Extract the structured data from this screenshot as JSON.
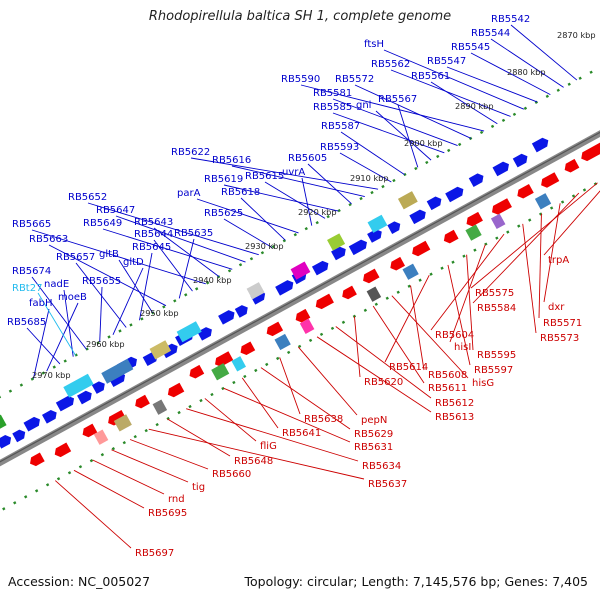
{
  "title": "Rhodopirellula baltica SH 1, complete genome",
  "footer": {
    "accession_label": "Accession:",
    "accession": "NC_005027",
    "topology_label": "Topology:",
    "topology": "circular;",
    "length_label": "Length:",
    "length": "7,145,576 bp;",
    "genes_label": "Genes:",
    "genes": "7,405"
  },
  "colors": {
    "forward_label": "#0000cc",
    "reverse_label": "#cc0000",
    "rna_label": "#22bbee",
    "backbone": "#888888",
    "ticks": "#2a8a2a"
  },
  "scale_labels": [
    "2870 kbp",
    "2880 kbp",
    "2890 kbp",
    "2900 kbp",
    "2910 kbp",
    "2920 kbp",
    "2930 kbp",
    "2940 kbp",
    "2950 kbp",
    "2960 kbp",
    "2970 kbp"
  ],
  "forward_genes": [
    "RB5542",
    "RB5544",
    "RB5545",
    "RB5547",
    "ftsH",
    "RB5562",
    "RB5561",
    "RB5590",
    "RB5572",
    "RB5581",
    "RB5585",
    "gnl",
    "RB5567",
    "RB5587",
    "RB5593",
    "RB5622",
    "RB5616",
    "RB5605",
    "RB5619",
    "RB5615",
    "uvrA",
    "parA",
    "RB5618",
    "RB5625",
    "RB5652",
    "RB5647",
    "RB5649",
    "RB5643",
    "RB5665",
    "RB5644",
    "RB5635",
    "RB5663",
    "gltB",
    "RB5645",
    "RB5657",
    "gltD",
    "RB5655",
    "RB5674",
    "nadE",
    "RB5685",
    "moeB",
    "fabH"
  ],
  "rna_genes": [
    "RBt27"
  ],
  "reverse_genes": [
    "trpA",
    "RB5575",
    "RB5584",
    "dxr",
    "RB5571",
    "RB5573",
    "RB5604",
    "hisI",
    "RB5595",
    "RB5597",
    "RB5614",
    "RB5608",
    "hisG",
    "RB5611",
    "RB5620",
    "RB5612",
    "RB5613",
    "pepN",
    "RB5638",
    "RB5629",
    "RB5641",
    "RB5631",
    "fliG",
    "RB5634",
    "RB5648",
    "RB5637",
    "RB5660",
    "tig",
    "rnd",
    "RB5695",
    "RB5697"
  ]
}
